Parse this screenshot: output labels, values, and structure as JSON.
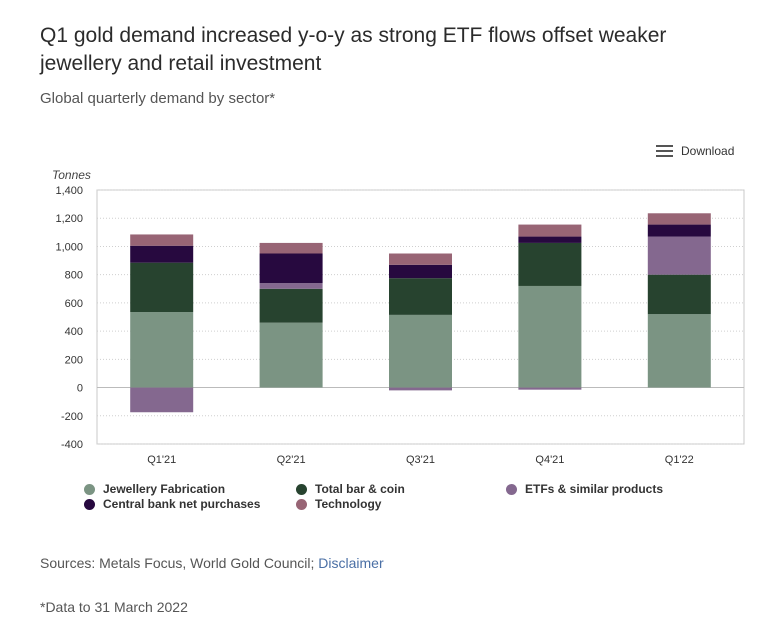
{
  "header": {
    "title": "Q1 gold demand increased y-o-y as strong ETF flows offset weaker jewellery and retail investment",
    "subtitle": "Global quarterly demand by sector*"
  },
  "toolbar": {
    "download_label": "Download"
  },
  "chart_data": {
    "type": "bar",
    "stacked": true,
    "title": "Q1 gold demand increased y-o-y as strong ETF flows offset weaker jewellery and retail investment",
    "ylabel": "Tonnes",
    "xlabel": "",
    "ylim": [
      -400,
      1400
    ],
    "yticks": [
      -400,
      -200,
      0,
      200,
      400,
      600,
      800,
      1000,
      1200,
      1400
    ],
    "ytick_labels": [
      "-400",
      "-200",
      "0",
      "200",
      "400",
      "600",
      "800",
      "1,000",
      "1,200",
      "1,400"
    ],
    "categories": [
      "Q1'21",
      "Q2'21",
      "Q3'21",
      "Q4'21",
      "Q1'22"
    ],
    "grid": true,
    "legend_position": "bottom",
    "series": [
      {
        "name": "Jewellery Fabrication",
        "color": "#7b9483",
        "values": [
          535,
          460,
          515,
          720,
          520
        ]
      },
      {
        "name": "Total bar & coin",
        "color": "#27432f",
        "values": [
          350,
          240,
          260,
          305,
          280
        ]
      },
      {
        "name": "ETFs & similar products",
        "color": "#84688f",
        "values": [
          -175,
          40,
          -20,
          -15,
          270
        ]
      },
      {
        "name": "Central bank net purchases",
        "color": "#27093f",
        "values": [
          120,
          210,
          95,
          45,
          85
        ]
      },
      {
        "name": "Technology",
        "color": "#986575",
        "values": [
          80,
          75,
          80,
          85,
          80
        ]
      }
    ]
  },
  "legend": {
    "items": [
      {
        "label": "Jewellery Fabrication",
        "color": "#7b9483"
      },
      {
        "label": "Total bar & coin",
        "color": "#27432f"
      },
      {
        "label": "ETFs & similar products",
        "color": "#84688f"
      },
      {
        "label": "Central bank net purchases",
        "color": "#27093f"
      },
      {
        "label": "Technology",
        "color": "#986575"
      }
    ]
  },
  "footer": {
    "sources_text": "Sources: Metals Focus, World Gold Council;",
    "disclaimer_link": "Disclaimer",
    "footnote": "*Data to 31 March 2022"
  }
}
